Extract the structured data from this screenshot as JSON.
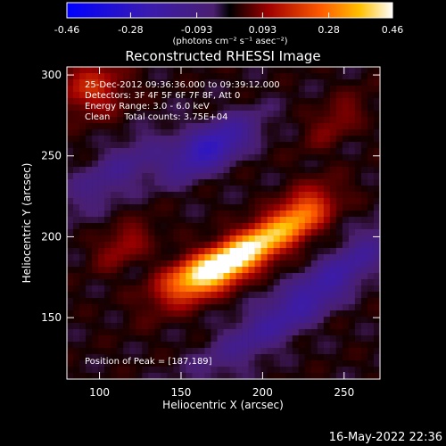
{
  "chart_data": {
    "type": "heatmap",
    "title": "Reconstructed RHESSI Image",
    "xlabel": "Heliocentric X (arcsec)",
    "ylabel": "Heliocentric Y (arcsec)",
    "xlim": [
      80,
      272
    ],
    "ylim": [
      112,
      305
    ],
    "xticks": [
      100,
      150,
      200,
      250
    ],
    "yticks": [
      150,
      200,
      250,
      300
    ],
    "annotations": {
      "time_range": "25-Dec-2012 09:36:36.000 to 09:39:12.000",
      "detectors": "Detectors: 3F 4F 5F 6F 7F 8F, Att 0",
      "energy": "Energy Range: 3.0 - 6.0 keV",
      "clean": "Clean     Total counts: 3.75E+04",
      "peak": "Position of Peak = [187,189]"
    },
    "peak": {
      "x": 187,
      "y": 189
    },
    "colorbar": {
      "ticks": [
        "-0.46",
        "-0.28",
        "-0.093",
        "0.093",
        "0.28",
        "0.46"
      ],
      "range": [
        -0.46,
        0.46
      ],
      "units_label": "(photons cm⁻² s⁻¹ asec⁻²)"
    },
    "sources": [
      {
        "x": 187,
        "y": 189,
        "amp": 1.0,
        "sigma_major": 30,
        "sigma_minor": 8,
        "angle_deg": 32
      },
      {
        "x": 160,
        "y": 178,
        "amp": 0.45,
        "sigma_major": 18,
        "sigma_minor": 8,
        "angle_deg": 20
      },
      {
        "x": 225,
        "y": 215,
        "amp": 0.35,
        "sigma_major": 14,
        "sigma_minor": 9,
        "angle_deg": 45
      },
      {
        "x": 95,
        "y": 292,
        "amp": 0.35,
        "sigma_major": 14,
        "sigma_minor": 12,
        "angle_deg": 0
      },
      {
        "x": 115,
        "y": 195,
        "amp": 0.25,
        "sigma_major": 14,
        "sigma_minor": 7,
        "angle_deg": 35
      },
      {
        "x": 245,
        "y": 272,
        "amp": 0.2,
        "sigma_major": 16,
        "sigma_minor": 7,
        "angle_deg": 40
      },
      {
        "x": 168,
        "y": 255,
        "amp": -0.6,
        "sigma_major": 20,
        "sigma_minor": 8,
        "angle_deg": 30
      },
      {
        "x": 210,
        "y": 150,
        "amp": -0.3,
        "sigma_major": 40,
        "sigma_minor": 9,
        "angle_deg": 35
      },
      {
        "x": 250,
        "y": 180,
        "amp": -0.25,
        "sigma_major": 35,
        "sigma_minor": 8,
        "angle_deg": 40
      },
      {
        "x": 110,
        "y": 240,
        "amp": -0.25,
        "sigma_major": 28,
        "sigma_minor": 9,
        "angle_deg": 35
      }
    ]
  },
  "footer": {
    "timestamp": "16-May-2022 22:36"
  }
}
